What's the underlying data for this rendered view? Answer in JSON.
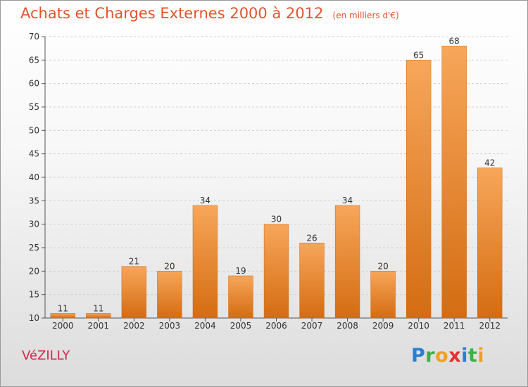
{
  "header": {
    "title": "Achats et Charges Externes 2000 à 2012",
    "unit": "(en milliers d'€)"
  },
  "commune": "VéZILLY",
  "logo": {
    "text": "Proxiti",
    "letters": [
      {
        "ch": "P",
        "color": "#2a7fd4"
      },
      {
        "ch": "r",
        "color": "#3cb04a"
      },
      {
        "ch": "o",
        "color": "#f0a020"
      },
      {
        "ch": "x",
        "color": "#e83030"
      },
      {
        "ch": "i",
        "color": "#2a7fd4"
      },
      {
        "ch": "t",
        "color": "#3cb04a"
      },
      {
        "ch": "i",
        "color": "#f0a020"
      }
    ]
  },
  "colors": {
    "bar_top": "#f7a65a",
    "bar_bottom": "#d46c12",
    "axis": "#555555",
    "grid": "#cfcfcf",
    "text": "#333333"
  },
  "chart_data": {
    "type": "bar",
    "title": "Achats et Charges Externes 2000 à 2012",
    "subtitle": "(en milliers d'€)",
    "xlabel": "",
    "ylabel": "",
    "ylim": [
      10,
      70
    ],
    "yticks": [
      10,
      15,
      20,
      25,
      30,
      35,
      40,
      45,
      50,
      55,
      60,
      65,
      70
    ],
    "grid": true,
    "categories": [
      "2000",
      "2001",
      "2002",
      "2003",
      "2004",
      "2005",
      "2006",
      "2007",
      "2008",
      "2009",
      "2010",
      "2011",
      "2012"
    ],
    "values": [
      11,
      11,
      21,
      20,
      34,
      19,
      30,
      26,
      34,
      20,
      65,
      68,
      42
    ]
  }
}
